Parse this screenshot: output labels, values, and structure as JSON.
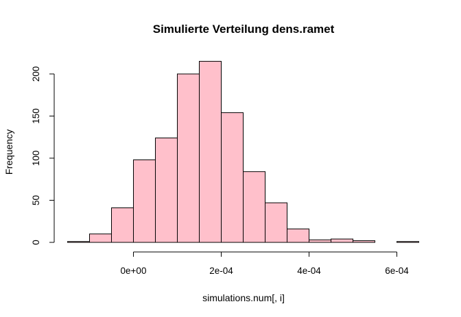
{
  "chart_data": {
    "type": "bar",
    "title": "Simulierte Verteilung dens.ramet",
    "xlabel": "simulations.num[, i]",
    "ylabel": "Frequency",
    "bin_width": 5e-05,
    "bins": [
      {
        "x0": -0.00015,
        "x1": -0.0001,
        "count": 1
      },
      {
        "x0": -0.0001,
        "x1": -5e-05,
        "count": 10
      },
      {
        "x0": -5e-05,
        "x1": 0.0,
        "count": 41
      },
      {
        "x0": 0.0,
        "x1": 5e-05,
        "count": 98
      },
      {
        "x0": 5e-05,
        "x1": 0.0001,
        "count": 124
      },
      {
        "x0": 0.0001,
        "x1": 0.00015,
        "count": 200
      },
      {
        "x0": 0.00015,
        "x1": 0.0002,
        "count": 215
      },
      {
        "x0": 0.0002,
        "x1": 0.00025,
        "count": 154
      },
      {
        "x0": 0.00025,
        "x1": 0.0003,
        "count": 84
      },
      {
        "x0": 0.0003,
        "x1": 0.00035,
        "count": 47
      },
      {
        "x0": 0.00035,
        "x1": 0.0004,
        "count": 16
      },
      {
        "x0": 0.0004,
        "x1": 0.00045,
        "count": 3
      },
      {
        "x0": 0.00045,
        "x1": 0.0005,
        "count": 4
      },
      {
        "x0": 0.0005,
        "x1": 0.00055,
        "count": 2
      },
      {
        "x0": 0.00055,
        "x1": 0.0006,
        "count": 0
      },
      {
        "x0": 0.0006,
        "x1": 0.00065,
        "count": 1
      }
    ],
    "x_ticks": [
      {
        "value": 0.0,
        "label": "0e+00"
      },
      {
        "value": 0.0002,
        "label": "2e-04"
      },
      {
        "value": 0.0004,
        "label": "4e-04"
      },
      {
        "value": 0.0006,
        "label": "6e-04"
      }
    ],
    "y_ticks": [
      {
        "value": 0,
        "label": "0"
      },
      {
        "value": 50,
        "label": "50"
      },
      {
        "value": 100,
        "label": "100"
      },
      {
        "value": 150,
        "label": "150"
      },
      {
        "value": 200,
        "label": "200"
      }
    ],
    "xlim": [
      -0.00015,
      0.00065
    ],
    "ylim": [
      0,
      200
    ],
    "bar_fill": "#ffc0cb",
    "bar_stroke": "#000000",
    "grid": false,
    "legend": "none"
  }
}
